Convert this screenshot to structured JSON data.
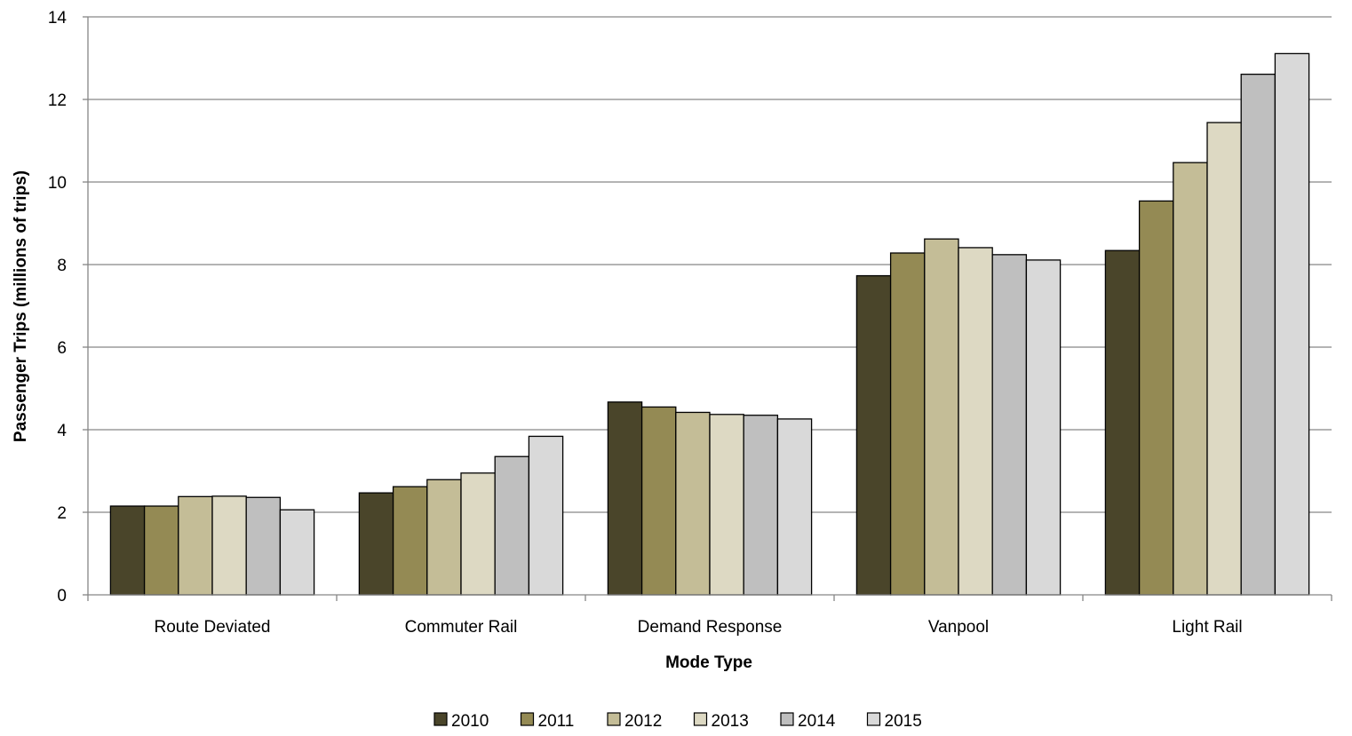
{
  "chart_data": {
    "type": "bar",
    "title": "",
    "xlabel": "Mode Type",
    "ylabel": "Passenger Trips (millions of trips)",
    "ylim": [
      0,
      14
    ],
    "yticks": [
      0,
      2,
      4,
      6,
      8,
      10,
      12,
      14
    ],
    "grid": true,
    "legend_position": "bottom",
    "categories": [
      "Route Deviated",
      "Commuter Rail",
      "Demand Response",
      "Vanpool",
      "Light Rail"
    ],
    "series": [
      {
        "name": "2010",
        "color": "#4a452a",
        "values": [
          2.15,
          2.47,
          4.67,
          7.73,
          8.34
        ]
      },
      {
        "name": "2011",
        "color": "#948a54",
        "values": [
          2.15,
          2.62,
          4.55,
          8.28,
          9.54
        ]
      },
      {
        "name": "2012",
        "color": "#c4bd97",
        "values": [
          2.38,
          2.79,
          4.42,
          8.62,
          10.47
        ]
      },
      {
        "name": "2013",
        "color": "#ddd9c3",
        "values": [
          2.39,
          2.95,
          4.37,
          8.41,
          11.44
        ]
      },
      {
        "name": "2014",
        "color": "#bfbfbf",
        "values": [
          2.36,
          3.35,
          4.35,
          8.24,
          12.61
        ]
      },
      {
        "name": "2015",
        "color": "#d9d9d9",
        "values": [
          2.06,
          3.84,
          4.26,
          8.11,
          13.11
        ]
      }
    ]
  }
}
